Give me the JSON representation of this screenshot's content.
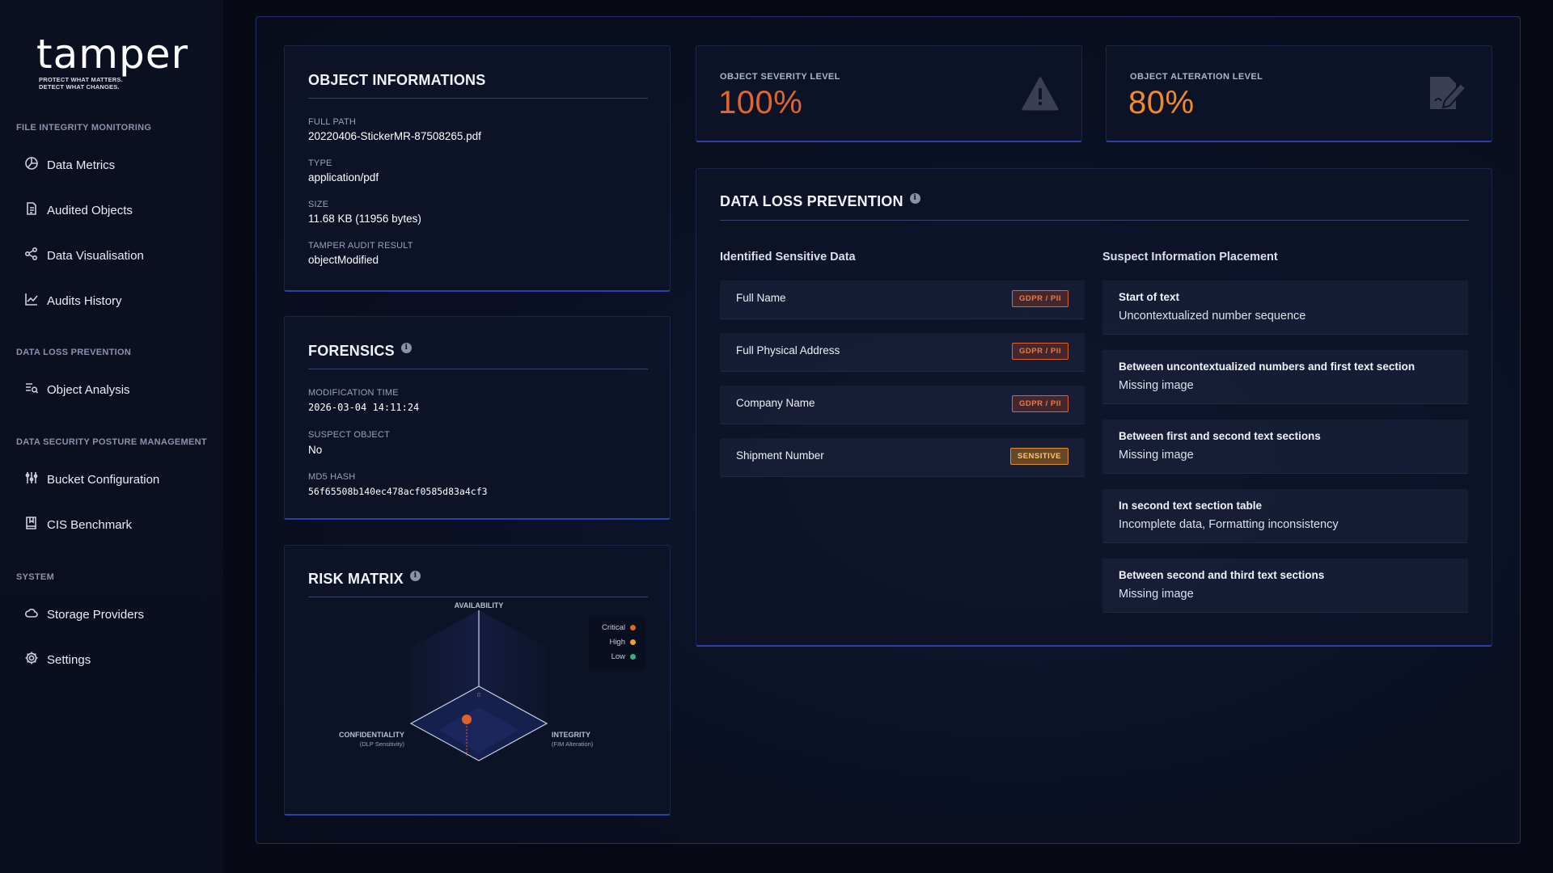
{
  "brand": {
    "name": "tamper",
    "tagline_line1": "PROTECT WHAT MATTERS.",
    "tagline_line2": "DETECT WHAT CHANGES."
  },
  "sidebar": {
    "sections": [
      {
        "title": "FILE INTEGRITY MONITORING",
        "items": [
          {
            "label": "Data Metrics",
            "icon": "pie-chart-icon"
          },
          {
            "label": "Audited Objects",
            "icon": "document-icon"
          },
          {
            "label": "Data Visualisation",
            "icon": "network-icon"
          },
          {
            "label": "Audits History",
            "icon": "line-chart-icon"
          }
        ]
      },
      {
        "title": "DATA LOSS PREVENTION",
        "items": [
          {
            "label": "Object Analysis",
            "icon": "list-search-icon"
          }
        ]
      },
      {
        "title": "DATA SECURITY POSTURE MANAGEMENT",
        "items": [
          {
            "label": "Bucket Configuration",
            "icon": "sliders-icon"
          },
          {
            "label": "CIS Benchmark",
            "icon": "book-icon"
          }
        ]
      },
      {
        "title": "SYSTEM",
        "items": [
          {
            "label": "Storage Providers",
            "icon": "cloud-icon"
          },
          {
            "label": "Settings",
            "icon": "gear-icon"
          }
        ]
      }
    ]
  },
  "object_info": {
    "title": "OBJECT INFORMATIONS",
    "fields": [
      {
        "label": "FULL PATH",
        "value": "20220406-StickerMR-87508265.pdf"
      },
      {
        "label": "TYPE",
        "value": "application/pdf"
      },
      {
        "label": "SIZE",
        "value": "11.68 KB (11956 bytes)"
      },
      {
        "label": "TAMPER AUDIT RESULT",
        "value": "objectModified"
      }
    ]
  },
  "forensics": {
    "title": "FORENSICS",
    "fields": [
      {
        "label": "MODIFICATION TIME",
        "value": "2026-03-04 14:11:24"
      },
      {
        "label": "SUSPECT OBJECT",
        "value": "No"
      },
      {
        "label": "MD5 HASH",
        "value": "56f65508b140ec478acf0585d83a4cf3"
      }
    ]
  },
  "risk_matrix": {
    "title": "RISK MATRIX",
    "axis_availability": "AVAILABILITY",
    "axis_confidentiality": "CONFIDENTIALITY",
    "axis_confidentiality_sub": "(DLP Sensitivity)",
    "axis_integrity": "INTEGRITY",
    "axis_integrity_sub": "(FIM Alteration)",
    "origin_label": "0",
    "legend": [
      {
        "label": "Critical",
        "color": "#e0622b"
      },
      {
        "label": "High",
        "color": "#f0a030"
      },
      {
        "label": "Low",
        "color": "#2fb37a"
      }
    ]
  },
  "kpis": {
    "severity": {
      "label": "OBJECT SEVERITY LEVEL",
      "value": "100%",
      "color": "#e0652e",
      "icon": "warning-icon"
    },
    "alteration": {
      "label": "OBJECT ALTERATION LEVEL",
      "value": "80%",
      "color": "#f08a2a",
      "icon": "document-edit-icon"
    }
  },
  "dlp": {
    "title": "DATA LOSS PREVENTION",
    "identified_heading": "Identified Sensitive Data",
    "placement_heading": "Suspect Information Placement",
    "identified": [
      {
        "label": "Full Name",
        "badge": "GDPR / PII",
        "kind": "gdpr"
      },
      {
        "label": "Full Physical Address",
        "badge": "GDPR / PII",
        "kind": "gdpr"
      },
      {
        "label": "Company Name",
        "badge": "GDPR / PII",
        "kind": "gdpr"
      },
      {
        "label": "Shipment Number",
        "badge": "SENSITIVE",
        "kind": "sensitive"
      }
    ],
    "placements": [
      {
        "title": "Start of text",
        "desc": "Uncontextualized number sequence"
      },
      {
        "title": "Between uncontextualized numbers and first text section",
        "desc": "Missing image"
      },
      {
        "title": "Between first and second text sections",
        "desc": "Missing image"
      },
      {
        "title": "In second text section table",
        "desc": "Incomplete data, Formatting inconsistency"
      },
      {
        "title": "Between second and third text sections",
        "desc": "Missing image"
      }
    ]
  }
}
